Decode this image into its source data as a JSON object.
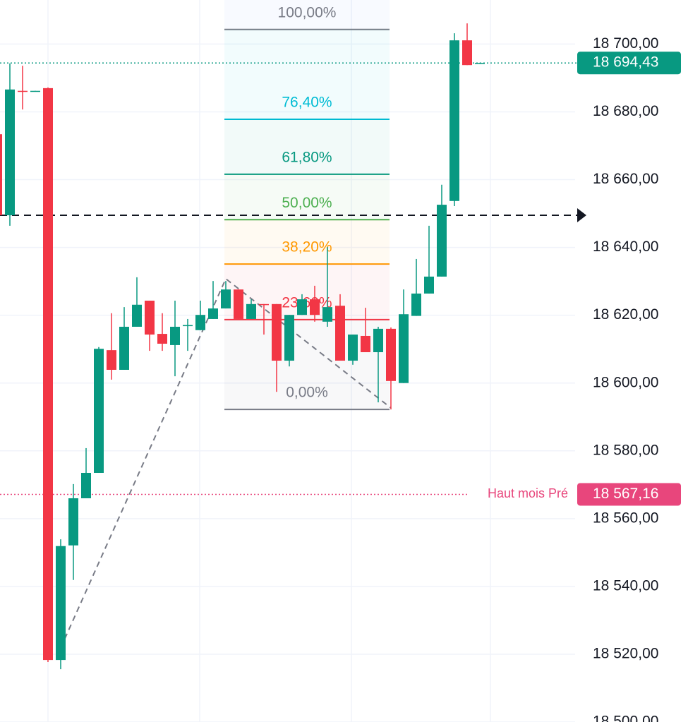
{
  "chart_data": {
    "type": "candlestick",
    "ylim": [
      18500,
      18713
    ],
    "yticks": [
      {
        "value": 18500,
        "label": "18 500,00"
      },
      {
        "value": 18520,
        "label": "18 520,00"
      },
      {
        "value": 18540,
        "label": "18 540,00"
      },
      {
        "value": 18560,
        "label": "18 560,00"
      },
      {
        "value": 18580,
        "label": "18 580,00"
      },
      {
        "value": 18600,
        "label": "18 600,00"
      },
      {
        "value": 18620,
        "label": "18 620,00"
      },
      {
        "value": 18640,
        "label": "18 640,00"
      },
      {
        "value": 18660,
        "label": "18 660,00"
      },
      {
        "value": 18680,
        "label": "18 680,00"
      },
      {
        "value": 18700,
        "label": "18 700,00"
      }
    ],
    "grid": true,
    "up_color": "#089981",
    "down_color": "#f23645",
    "open": [
      18673.4,
      18649.5,
      18686.2,
      18686.0,
      18687.0,
      18518.3,
      18552.1,
      18566.0,
      18573.5,
      18609.7,
      18603.9,
      18616.6,
      18624.3,
      18614.5,
      18611.2,
      18616.9,
      18615.6,
      18618.9,
      18622.0,
      18627.6,
      18618.9,
      18623.3,
      18623.3,
      18606.6,
      18620.1,
      18624.7,
      18618.1,
      18622.8,
      18606.6,
      18613.9,
      18609.1,
      18616.0,
      18600.0,
      18619.8,
      18626.4,
      18631.4,
      18653.7,
      18701.1,
      18694.3
    ],
    "high": [
      18673.4,
      18694.3,
      18693.6,
      18686.2,
      18687.2,
      18553.9,
      18570.2,
      18580.8,
      18610.6,
      18620.6,
      18622.4,
      18631.2,
      18624.3,
      18620.6,
      18624.3,
      18618.9,
      18624.3,
      18630.1,
      18630.1,
      18627.6,
      18624.7,
      18623.3,
      18623.3,
      18620.1,
      18626.2,
      18628.7,
      18640.1,
      18626.2,
      18614.3,
      18622.2,
      18616.6,
      18616.4,
      18627.6,
      18636.6,
      18646.4,
      18658.5,
      18703.2,
      18706.1,
      18694.5
    ],
    "low": [
      18649.5,
      18646.4,
      18680.7,
      18686.0,
      18517.7,
      18515.6,
      18541.9,
      18566.0,
      18573.5,
      18601.0,
      18603.9,
      18616.6,
      18609.5,
      18609.5,
      18602.0,
      18609.5,
      18615.6,
      18618.9,
      18622.0,
      18618.9,
      18618.9,
      18614.3,
      18597.4,
      18604.9,
      18620.1,
      18618.1,
      18616.6,
      18606.6,
      18605.4,
      18609.1,
      18594.3,
      18592.2,
      18600.0,
      18619.8,
      18626.4,
      18631.4,
      18652.2,
      18693.8,
      18694.3
    ],
    "close": [
      18649.5,
      18686.6,
      18686.0,
      18686.2,
      18518.3,
      18551.9,
      18566.0,
      18573.5,
      18610.1,
      18603.9,
      18616.6,
      18623.1,
      18614.3,
      18611.6,
      18616.6,
      18617.1,
      18620.1,
      18622.0,
      18627.6,
      18618.9,
      18623.3,
      18623.1,
      18606.6,
      18620.1,
      18624.7,
      18620.1,
      18622.4,
      18606.6,
      18614.3,
      18609.1,
      18616.0,
      18600.6,
      18620.3,
      18626.4,
      18631.4,
      18652.6,
      18701.1,
      18693.8,
      18694.43
    ],
    "fib_levels": [
      {
        "value": 18704.3,
        "label": "100,00%",
        "color": "#787b86"
      },
      {
        "value": 18677.8,
        "label": "76,40%",
        "color": "#00bcd4"
      },
      {
        "value": 18661.6,
        "label": "61,80%",
        "color": "#089981"
      },
      {
        "value": 18648.2,
        "label": "50,00%",
        "color": "#4caf50"
      },
      {
        "value": 18635.1,
        "label": "38,20%",
        "color": "#ff9800"
      },
      {
        "value": 18618.7,
        "label": "23,60%",
        "color": "#f23645"
      },
      {
        "value": 18592.2,
        "label": "0,00%",
        "color": "#787b86"
      }
    ],
    "horizontal_line": 18649.5,
    "last_price": {
      "value": 18694.43,
      "label": "18 694,43",
      "color": "#089981"
    },
    "reference_line": {
      "name": "Haut mois Pré",
      "value": 18567.16,
      "label": "18 567,16",
      "color": "#e8467c"
    }
  }
}
